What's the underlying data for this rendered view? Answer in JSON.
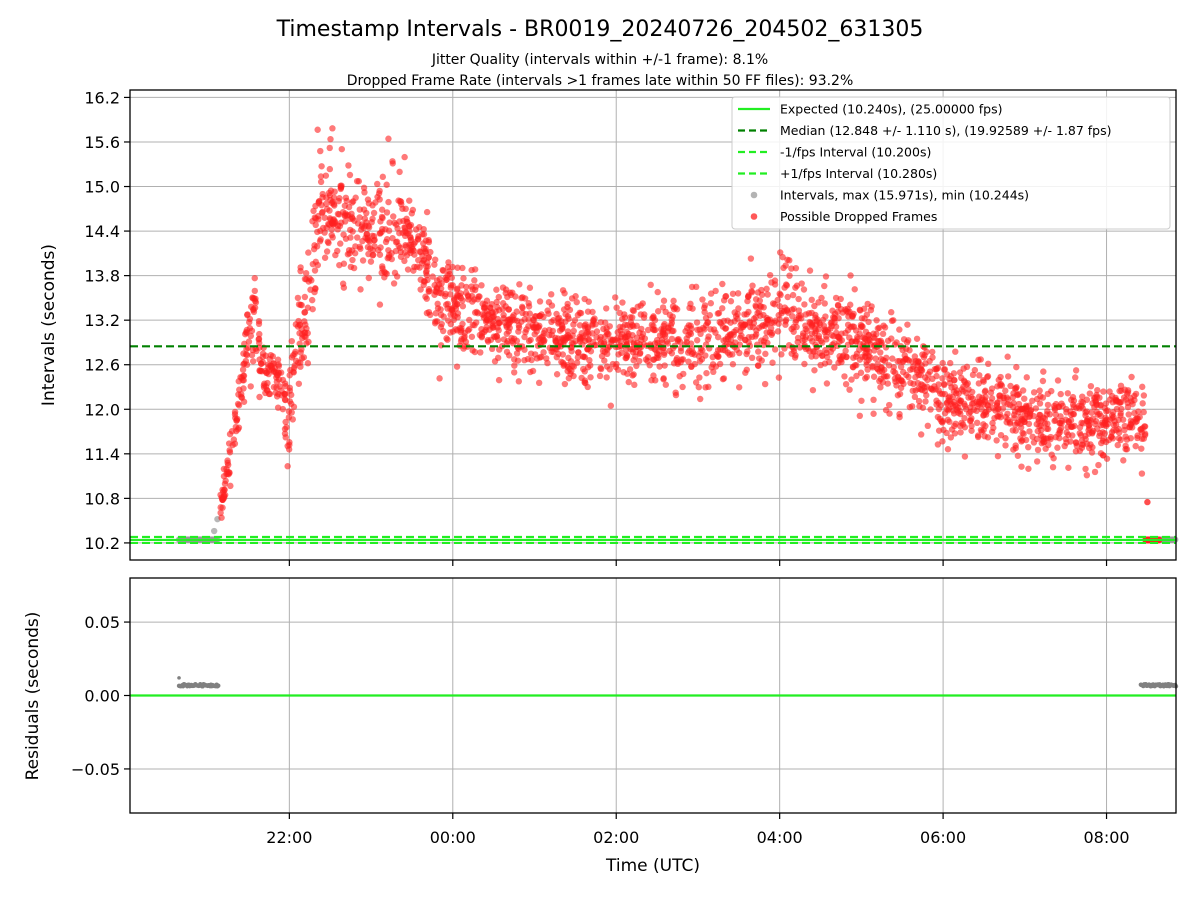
{
  "chart_data": [
    {
      "type": "scatter",
      "title": "Timestamp Intervals - BR0019_20240726_204502_631305",
      "subtitle_lines": [
        "Jitter Quality (intervals within +/-1 frame): 8.1%",
        "Dropped Frame Rate (intervals >1 frames late within 50 FF files): 93.2%"
      ],
      "ylabel": "Intervals (seconds)",
      "x_unit": "hours UTC (since 00:00 of 2024-07-27, negative = 2024-07-26)",
      "xlim": [
        -3.95,
        8.85
      ],
      "ylim": [
        9.97,
        16.3
      ],
      "yticks": [
        "10.2",
        "10.8",
        "11.4",
        "12.0",
        "12.6",
        "13.2",
        "13.8",
        "14.4",
        "15.0",
        "15.6",
        "16.2"
      ],
      "grid": true,
      "legend_position": "top-right",
      "legend": [
        {
          "label": "Expected (10.240s), (25.00000 fps)",
          "style": "solid-line",
          "color": "#22ee22"
        },
        {
          "label": "Median (12.848 +/- 1.110 s), (19.92589 +/- 1.87 fps)",
          "style": "dashed-line",
          "color": "#008000"
        },
        {
          "label": "-1/fps Interval (10.200s)",
          "style": "dashed-line",
          "color": "#22ee22"
        },
        {
          "label": "+1/fps Interval (10.280s)",
          "style": "dashed-line",
          "color": "#22ee22"
        },
        {
          "label": "Intervals, max (15.971s), min (10.244s)",
          "style": "dot",
          "color": "#999999"
        },
        {
          "label": "Possible Dropped Frames",
          "style": "dot",
          "color": "#ff2020"
        }
      ],
      "reference_lines": {
        "expected": 10.24,
        "median": 12.848,
        "minus_fps": 10.2,
        "plus_fps": 10.28
      },
      "series": [
        {
          "name": "Possible Dropped Frames",
          "color": "#ff2020",
          "trend": {
            "x": [
              -2.85,
              -2.8,
              -2.72,
              -2.62,
              -2.52,
              -2.42,
              -2.35,
              -2.25,
              -2.12,
              -2.02,
              -1.92,
              -1.8,
              -1.7,
              -1.55,
              -1.35,
              -1.1,
              -0.8,
              -0.5,
              -0.2,
              0.0,
              0.3,
              0.6,
              1.0,
              1.3,
              1.7,
              2.0,
              2.5,
              3.0,
              3.5,
              4.0,
              4.5,
              5.0,
              5.5,
              6.0,
              6.5,
              7.0,
              7.5,
              8.0,
              8.2,
              8.4,
              8.48
            ],
            "y": [
              10.55,
              10.95,
              11.5,
              12.05,
              12.85,
              13.35,
              12.6,
              12.45,
              12.35,
              11.8,
              12.9,
              13.2,
              14.15,
              14.75,
              14.55,
              14.35,
              14.45,
              14.4,
              13.45,
              13.35,
              13.15,
              13.1,
              13.05,
              12.95,
              12.85,
              12.9,
              12.95,
              12.9,
              13.0,
              13.3,
              13.1,
              12.9,
              12.55,
              12.15,
              12.05,
              11.9,
              11.75,
              11.85,
              11.95,
              11.8,
              11.6
            ],
            "spread": [
              0.08,
              0.12,
              0.15,
              0.18,
              0.22,
              0.25,
              0.2,
              0.2,
              0.2,
              0.3,
              0.35,
              0.4,
              0.45,
              0.5,
              0.45,
              0.4,
              0.38,
              0.35,
              0.3,
              0.3,
              0.3,
              0.3,
              0.28,
              0.28,
              0.28,
              0.28,
              0.28,
              0.3,
              0.3,
              0.3,
              0.3,
              0.3,
              0.3,
              0.28,
              0.28,
              0.26,
              0.26,
              0.26,
              0.28,
              0.3,
              0.25
            ]
          },
          "x_range": [
            -2.85,
            8.48
          ],
          "tail_points": {
            "x_range": [
              8.48,
              8.64
            ],
            "y": 10.24
          }
        },
        {
          "name": "Intervals",
          "color": "#999999",
          "segments": [
            {
              "x_range": [
                -3.35,
                -2.87
              ],
              "y": 10.245
            },
            {
              "x_range": [
                8.48,
                8.85
              ],
              "y": 10.245
            }
          ],
          "extra_points": [
            {
              "x": -2.92,
              "y": 10.36
            },
            {
              "x": -2.88,
              "y": 10.52
            }
          ]
        }
      ]
    },
    {
      "type": "scatter",
      "ylabel": "Residuals (seconds)",
      "xlabel": "Time (UTC)",
      "xlim": [
        -3.95,
        8.85
      ],
      "ylim": [
        -0.08,
        0.08
      ],
      "yticks": [
        "−0.05",
        "0.00",
        "0.05"
      ],
      "xticks": [
        "22:00",
        "00:00",
        "02:00",
        "04:00",
        "06:00",
        "08:00"
      ],
      "xtick_hours": [
        -2,
        0,
        2,
        4,
        6,
        8
      ],
      "grid": true,
      "zero_line_color": "#22ee22",
      "series": [
        {
          "name": "Residuals",
          "color": "#808080",
          "segments": [
            {
              "x_range": [
                -3.35,
                -2.87
              ],
              "y": 0.007
            },
            {
              "x_range": [
                8.42,
                8.85
              ],
              "y": 0.007
            }
          ],
          "extra_points": [
            {
              "x": -3.35,
              "y": 0.012
            }
          ]
        }
      ]
    }
  ]
}
